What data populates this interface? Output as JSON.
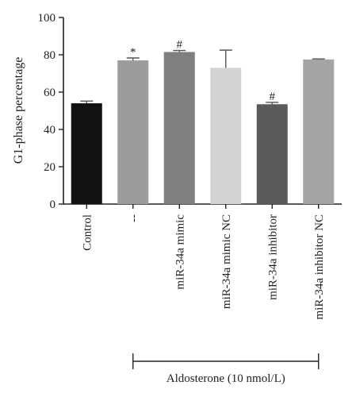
{
  "chart_data": {
    "type": "bar",
    "ylabel": "G1-phase percentage",
    "ylim": [
      0,
      100
    ],
    "yticks": [
      0,
      20,
      40,
      60,
      80,
      100
    ],
    "categories": [
      "Control",
      "--",
      "miR-34a mimic",
      "miR-34a mimic NC",
      "miR-34a inhibitor",
      "miR-34a inhibitor NC"
    ],
    "values": [
      54,
      77,
      81.5,
      73,
      53.5,
      77.5
    ],
    "errors": [
      1.2,
      1.3,
      0.8,
      9.5,
      1.0,
      0.3
    ],
    "colors": [
      "#111111",
      "#9c9c9c",
      "#7f7f7f",
      "#d3d3d3",
      "#5a5a5a",
      "#a5a5a5"
    ],
    "significance": [
      "",
      "*",
      "#",
      "",
      "#",
      ""
    ],
    "group_bracket": {
      "label": "Aldosterone (10 nmol/L)",
      "from_category": 1,
      "to_category": 5
    },
    "grid": false,
    "legend": "none"
  }
}
